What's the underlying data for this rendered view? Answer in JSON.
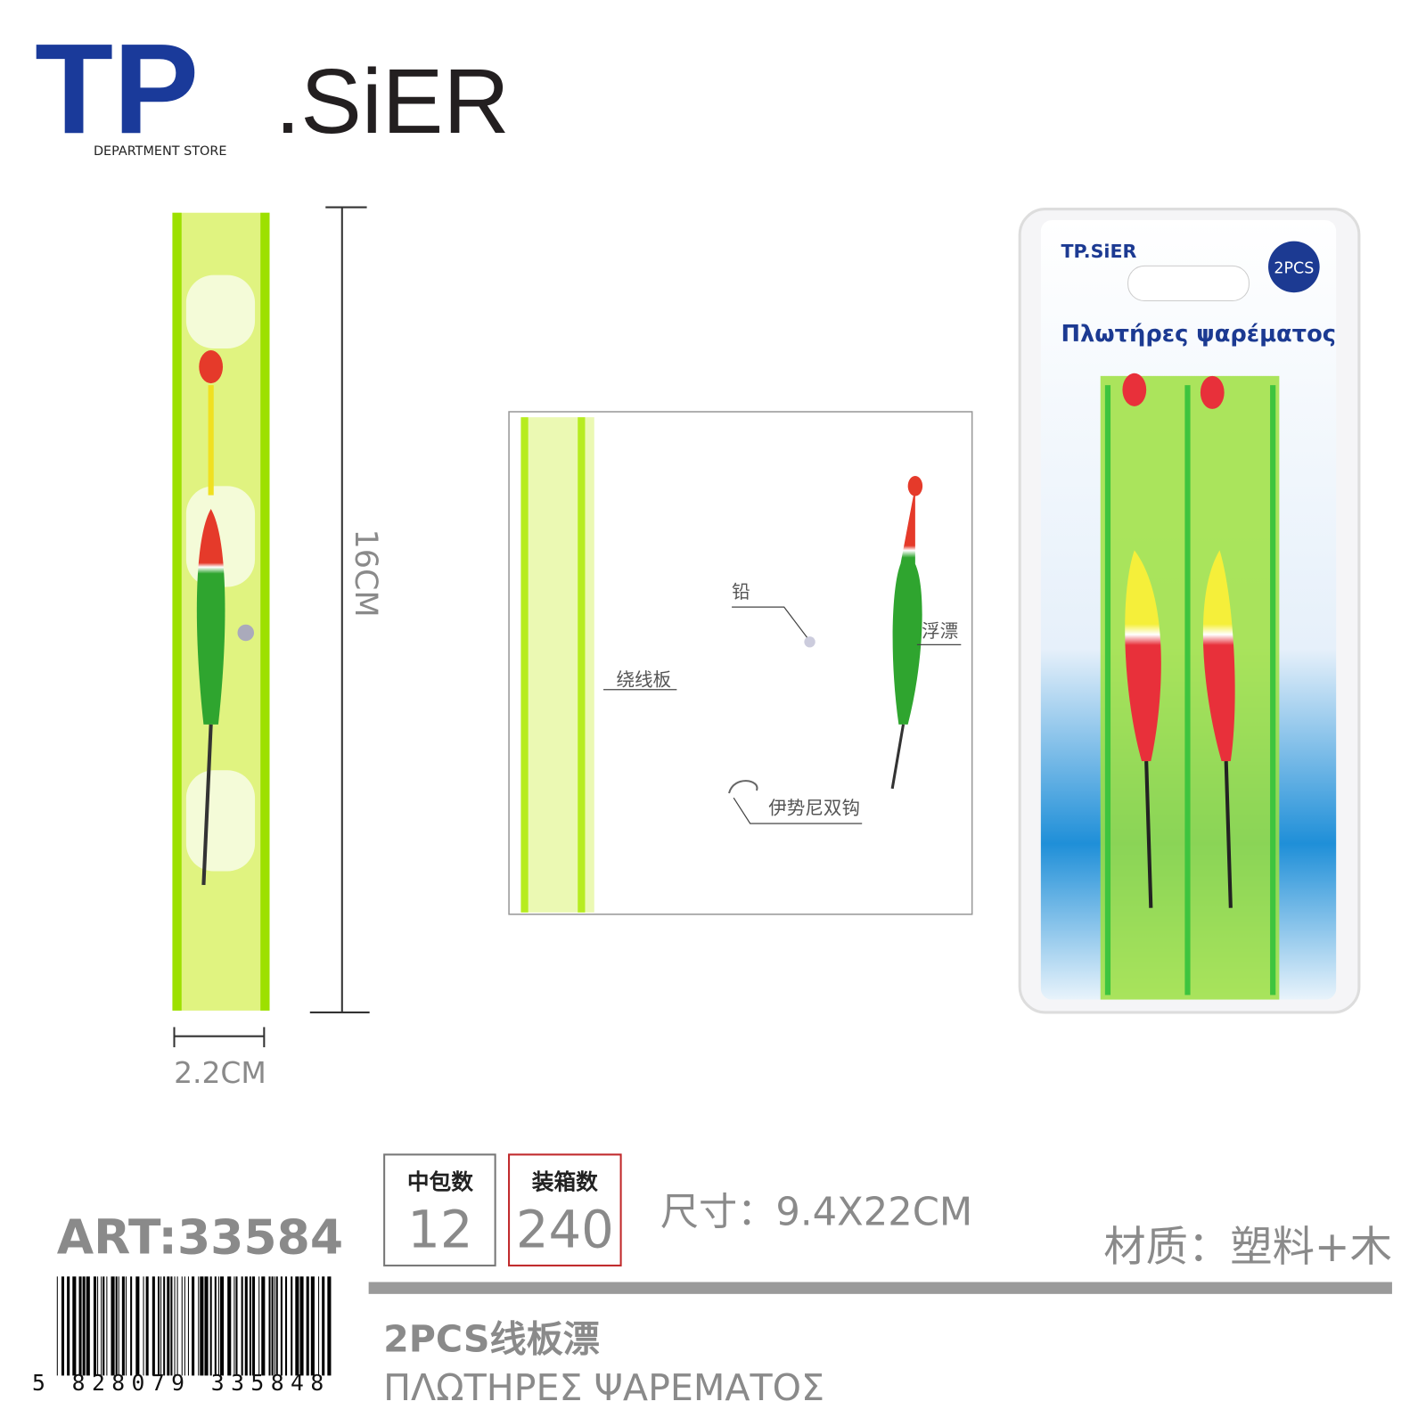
{
  "header": {
    "logo_main": "TP",
    "logo_rest": ".SiER",
    "tagline": "DEPARTMENT STORE"
  },
  "dimensions": {
    "height": "16CM",
    "width": "2.2CM"
  },
  "package": {
    "logo": "TP.SiER",
    "badge": "2PCS",
    "title": "Πλωτήρες ψαρέματος"
  },
  "diagram": {
    "labels": [
      "铅",
      "浮漂",
      "绕线板",
      "伊势尼双钩"
    ]
  },
  "info": {
    "inner_pack_label": "中包数",
    "inner_pack_value": "12",
    "carton_label": "装箱数",
    "carton_value": "240",
    "size": "尺寸：9.4X22CM",
    "material": "材质：塑料+木"
  },
  "article": "ART:33584",
  "barcode": "5 828079 335848",
  "product": {
    "name_cn": "2PCS线板漂",
    "name_gr": "ΠΛΩΤΗΡΕΣ ΨΑΡΕΜΑΤΟΣ"
  }
}
